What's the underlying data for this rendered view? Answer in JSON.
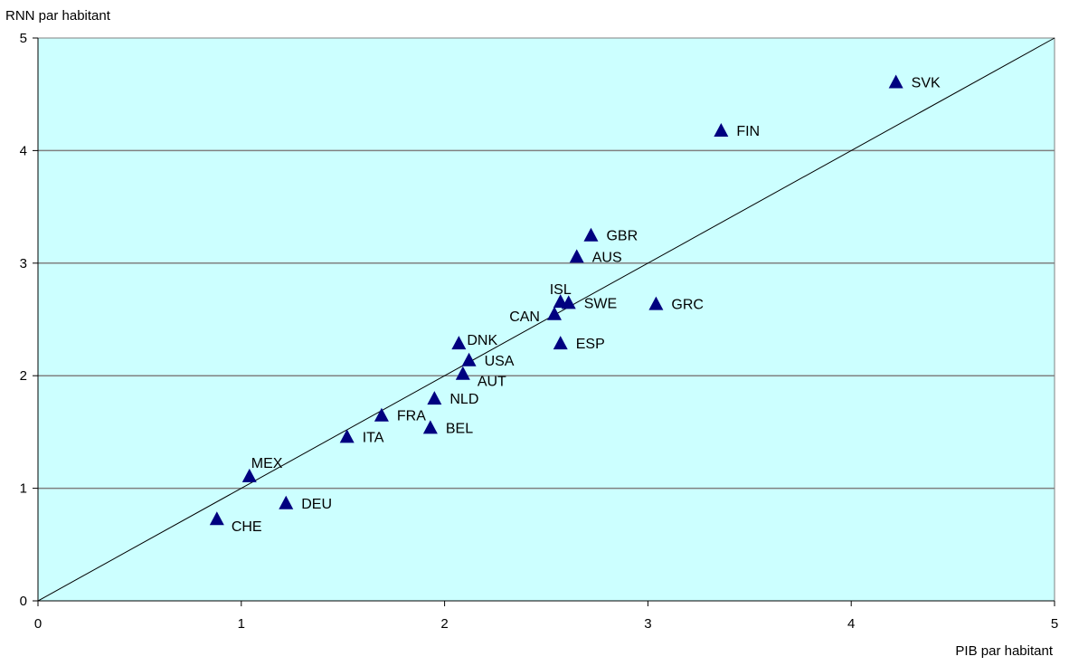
{
  "chart_data": {
    "type": "scatter",
    "title": "",
    "xlabel": "PIB par habitant",
    "ylabel": "RNN par habitant",
    "xlim": [
      0,
      5
    ],
    "ylim": [
      0,
      5
    ],
    "x_ticks": [
      "0",
      "1",
      "2",
      "3",
      "4",
      "5"
    ],
    "y_ticks": [
      "0",
      "1",
      "2",
      "3",
      "4",
      "5"
    ],
    "grid": "horizontal",
    "reference_line": "y = x",
    "plot_background": "#ccffff",
    "marker_color": "#000080",
    "gridline_color": "#808080",
    "points": [
      {
        "label": "SVK",
        "x": 4.22,
        "y": 4.61,
        "label_pos": "right"
      },
      {
        "label": "FIN",
        "x": 3.36,
        "y": 4.18,
        "label_pos": "right"
      },
      {
        "label": "GBR",
        "x": 2.72,
        "y": 3.25,
        "label_pos": "right"
      },
      {
        "label": "AUS",
        "x": 2.65,
        "y": 3.06,
        "label_pos": "right"
      },
      {
        "label": "ISL",
        "x": 2.57,
        "y": 2.66,
        "label_pos": "top-left"
      },
      {
        "label": "SWE",
        "x": 2.61,
        "y": 2.65,
        "label_pos": "right"
      },
      {
        "label": "CAN",
        "x": 2.54,
        "y": 2.55,
        "label_pos": "left"
      },
      {
        "label": "GRC",
        "x": 3.04,
        "y": 2.64,
        "label_pos": "right"
      },
      {
        "label": "ESP",
        "x": 2.57,
        "y": 2.29,
        "label_pos": "right"
      },
      {
        "label": "DNK",
        "x": 2.07,
        "y": 2.29,
        "label_pos": "right-tight"
      },
      {
        "label": "USA",
        "x": 2.12,
        "y": 2.14,
        "label_pos": "right"
      },
      {
        "label": "AUT",
        "x": 2.09,
        "y": 2.02,
        "label_pos": "bottom-right"
      },
      {
        "label": "NLD",
        "x": 1.95,
        "y": 1.8,
        "label_pos": "right"
      },
      {
        "label": "FRA",
        "x": 1.69,
        "y": 1.65,
        "label_pos": "right"
      },
      {
        "label": "BEL",
        "x": 1.93,
        "y": 1.54,
        "label_pos": "right"
      },
      {
        "label": "ITA",
        "x": 1.52,
        "y": 1.46,
        "label_pos": "right"
      },
      {
        "label": "MEX",
        "x": 1.04,
        "y": 1.11,
        "label_pos": "top-right"
      },
      {
        "label": "DEU",
        "x": 1.22,
        "y": 0.87,
        "label_pos": "right"
      },
      {
        "label": "CHE",
        "x": 0.88,
        "y": 0.73,
        "label_pos": "bottom-right"
      }
    ]
  }
}
